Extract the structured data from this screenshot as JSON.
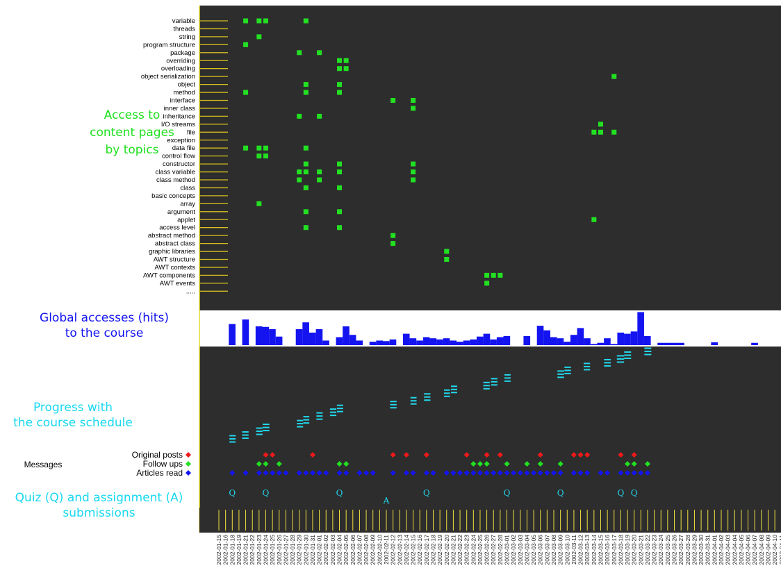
{
  "labels": {
    "topics_panel": "Access to content pages by topics",
    "topics_l1": "Access to",
    "topics_l2": "content pages",
    "topics_l3": "by topics",
    "hits_l1": "Global accesses (hits)",
    "hits_l2": "to the course",
    "progress_l1": "Progress with",
    "progress_l2": "the course schedule",
    "messages": "Messages",
    "original_posts": "Original posts",
    "follow_ups": "Follow ups",
    "articles_read": "Articles read",
    "quiz_l1": "Quiz (Q) and assignment (A)",
    "quiz_l2": "submissions",
    "quiz_marker": "Q",
    "assignment_marker": "A"
  },
  "colors": {
    "panel_bg": "#2d2d2d",
    "topic_mark": "#22e022",
    "hits_bar": "#1414f0",
    "progress": "#22d8ee",
    "original_posts": "#ee1a1a",
    "follow_ups": "#22e022",
    "articles_read": "#1414f0",
    "tick": "#f0e040"
  },
  "chart_data": {
    "type": "heatmap",
    "dates": [
      "2002-01-15",
      "2002-01-16",
      "2002-01-18",
      "2002-01-19",
      "2002-01-21",
      "2002-01-22",
      "2002-01-23",
      "2002-01-24",
      "2002-01-25",
      "2002-01-26",
      "2002-01-27",
      "2002-01-28",
      "2002-01-29",
      "2002-01-30",
      "2002-01-31",
      "2002-02-01",
      "2002-02-02",
      "2002-02-03",
      "2002-02-04",
      "2002-02-05",
      "2002-02-06",
      "2002-02-07",
      "2002-02-08",
      "2002-02-09",
      "2002-02-10",
      "2002-02-11",
      "2002-02-12",
      "2002-02-13",
      "2002-02-14",
      "2002-02-15",
      "2002-02-16",
      "2002-02-17",
      "2002-02-18",
      "2002-02-19",
      "2002-02-20",
      "2002-02-21",
      "2002-02-22",
      "2002-02-23",
      "2002-02-24",
      "2002-02-25",
      "2002-02-26",
      "2002-02-27",
      "2002-02-28",
      "2002-03-01",
      "2002-03-02",
      "2002-03-03",
      "2002-03-04",
      "2002-03-05",
      "2002-03-06",
      "2002-03-07",
      "2002-03-08",
      "2002-03-09",
      "2002-03-10",
      "2002-03-11",
      "2002-03-12",
      "2002-03-13",
      "2002-03-14",
      "2002-03-15",
      "2002-03-16",
      "2002-03-17",
      "2002-03-18",
      "2002-03-19",
      "2002-03-20",
      "2002-03-21",
      "2002-03-22",
      "2002-03-23",
      "2002-03-24",
      "2002-03-25",
      "2002-03-26",
      "2002-03-27",
      "2002-03-28",
      "2002-03-29",
      "2002-03-30",
      "2002-03-31",
      "2002-04-01",
      "2002-04-02",
      "2002-04-03",
      "2002-04-04",
      "2002-04-05",
      "2002-04-06",
      "2002-04-07",
      "2002-04-08",
      "2002-04-09",
      "2002-04-10",
      "2002-04-11"
    ],
    "topics": [
      "variable",
      "threads",
      "string",
      "program structure",
      "package",
      "overriding",
      "overloading",
      "object serialization",
      "object",
      "method",
      "interface",
      "inner class",
      "inheritance",
      "I/O streams",
      "file",
      "exception",
      "data file",
      "control flow",
      "constructor",
      "class variable",
      "class method",
      "class",
      "basic concepts",
      "array",
      "argument",
      "applet",
      "access level",
      "abstract method",
      "abstract class",
      "graphic libraries",
      "AWT structure",
      "AWT contexts",
      "AWT components",
      "AWT events",
      "....."
    ],
    "topic_accesses": [
      [
        "variable",
        [
          "2002-01-21",
          "2002-01-23",
          "2002-01-24",
          "2002-01-30"
        ]
      ],
      [
        "string",
        [
          "2002-01-23"
        ]
      ],
      [
        "program structure",
        [
          "2002-01-21"
        ]
      ],
      [
        "package",
        [
          "2002-01-29",
          "2002-02-01"
        ]
      ],
      [
        "overriding",
        [
          "2002-02-04",
          "2002-02-05"
        ]
      ],
      [
        "overloading",
        [
          "2002-02-04",
          "2002-02-05"
        ]
      ],
      [
        "object serialization",
        [
          "2002-03-17"
        ]
      ],
      [
        "object",
        [
          "2002-01-30",
          "2002-02-04"
        ]
      ],
      [
        "method",
        [
          "2002-01-21",
          "2002-01-30",
          "2002-02-04"
        ]
      ],
      [
        "interface",
        [
          "2002-02-12",
          "2002-02-15"
        ]
      ],
      [
        "inner class",
        [
          "2002-02-15"
        ]
      ],
      [
        "inheritance",
        [
          "2002-01-29",
          "2002-02-01"
        ]
      ],
      [
        "I/O streams",
        [
          "2002-03-15"
        ]
      ],
      [
        "file",
        [
          "2002-03-14",
          "2002-03-15",
          "2002-03-17"
        ]
      ],
      [
        "data file",
        [
          "2002-01-21",
          "2002-01-23",
          "2002-01-24",
          "2002-01-30"
        ]
      ],
      [
        "control flow",
        [
          "2002-01-23",
          "2002-01-24"
        ]
      ],
      [
        "constructor",
        [
          "2002-01-30",
          "2002-02-04",
          "2002-02-15"
        ]
      ],
      [
        "class variable",
        [
          "2002-01-29",
          "2002-01-30",
          "2002-02-01",
          "2002-02-04",
          "2002-02-15"
        ]
      ],
      [
        "class method",
        [
          "2002-01-29",
          "2002-02-01",
          "2002-02-15"
        ]
      ],
      [
        "class",
        [
          "2002-01-30",
          "2002-02-04"
        ]
      ],
      [
        "array",
        [
          "2002-01-23"
        ]
      ],
      [
        "argument",
        [
          "2002-01-30",
          "2002-02-04"
        ]
      ],
      [
        "applet",
        [
          "2002-03-14"
        ]
      ],
      [
        "access level",
        [
          "2002-01-30",
          "2002-02-04"
        ]
      ],
      [
        "abstract method",
        [
          "2002-02-12"
        ]
      ],
      [
        "abstract class",
        [
          "2002-02-12"
        ]
      ],
      [
        "graphic libraries",
        [
          "2002-02-20"
        ]
      ],
      [
        "AWT structure",
        [
          "2002-02-20"
        ]
      ],
      [
        "AWT components",
        [
          "2002-02-26",
          "2002-02-27",
          "2002-02-28"
        ]
      ],
      [
        "AWT events",
        [
          "2002-02-26"
        ]
      ]
    ],
    "hits": [
      0,
      0,
      37,
      0,
      45,
      0,
      33,
      32,
      28,
      15,
      0,
      0,
      28,
      40,
      22,
      28,
      8,
      0,
      14,
      33,
      18,
      8,
      0,
      6,
      8,
      7,
      10,
      0,
      20,
      12,
      8,
      14,
      12,
      10,
      12,
      8,
      6,
      8,
      10,
      15,
      20,
      10,
      14,
      16,
      0,
      0,
      16,
      0,
      34,
      26,
      14,
      12,
      6,
      18,
      30,
      12,
      2,
      4,
      12,
      2,
      22,
      20,
      24,
      58,
      16,
      0,
      4,
      4,
      4,
      4,
      0,
      0,
      0,
      0,
      5,
      0,
      0,
      0,
      0,
      0,
      4,
      0,
      0,
      0,
      0
    ],
    "progress": [
      [
        [
          "2002-01-18",
          0.37,
          0.6
        ]
      ],
      [
        [
          "2002-01-21",
          0.13,
          0.47
        ]
      ],
      [
        [
          "2002-01-23",
          0.36,
          0.65
        ]
      ],
      [
        [
          "2002-01-24",
          0.3,
          0.7
        ]
      ],
      [
        [
          "2002-01-29",
          0.55,
          0.78
        ]
      ],
      [
        [
          "2002-01-30",
          0.45,
          0.6
        ]
      ],
      [
        [
          "2002-02-01",
          0.35,
          0.6
        ]
      ],
      [
        [
          "2002-02-03",
          0.4,
          0.7
        ]
      ],
      [
        [
          "2002-02-04",
          0.5,
          0.75
        ]
      ],
      [
        [
          "2002-02-12",
          0.35,
          0.7
        ]
      ],
      [
        [
          "2002-02-15",
          0.45,
          0.65
        ]
      ],
      [
        [
          "2002-02-17",
          0.5,
          0.8
        ]
      ],
      [
        [
          "2002-02-20",
          0.45,
          0.6
        ]
      ],
      [
        [
          "2002-02-21",
          0.55,
          0.8
        ]
      ],
      [
        [
          "2002-02-26",
          0.15,
          0.45
        ]
      ],
      [
        [
          "2002-02-27",
          0.5,
          0.8
        ]
      ],
      [
        [
          "2002-03-01",
          0.5,
          0.75
        ]
      ],
      [
        [
          "2002-03-09",
          0.3,
          0.7
        ]
      ],
      [
        [
          "2002-03-10",
          0.4,
          0.75
        ]
      ],
      [
        [
          "2002-03-13",
          0.1,
          0.4
        ]
      ],
      [
        [
          "2002-03-16",
          0.2,
          0.6
        ]
      ],
      [
        [
          "2002-03-18",
          0.0,
          0.6
        ]
      ],
      [
        [
          "2002-03-19",
          0.2,
          0.7
        ]
      ],
      [
        [
          "2002-03-22",
          0.25,
          0.75
        ]
      ]
    ],
    "original_posts": [
      "2002-01-24",
      "2002-01-25",
      "2002-01-31",
      "2002-02-12",
      "2002-02-14",
      "2002-02-17",
      "2002-02-23",
      "2002-02-26",
      "2002-02-28",
      "2002-03-06",
      "2002-03-11",
      "2002-03-12",
      "2002-03-13",
      "2002-03-18",
      "2002-03-20"
    ],
    "follow_ups": [
      "2002-01-23",
      "2002-01-24",
      "2002-01-26",
      "2002-02-04",
      "2002-02-05",
      "2002-02-24",
      "2002-02-25",
      "2002-02-26",
      "2002-03-01",
      "2002-03-04",
      "2002-03-06",
      "2002-03-09",
      "2002-03-19",
      "2002-03-20",
      "2002-03-22"
    ],
    "articles_read": [
      "2002-01-18",
      "2002-01-21",
      "2002-01-23",
      "2002-01-24",
      "2002-01-25",
      "2002-01-26",
      "2002-01-27",
      "2002-01-29",
      "2002-01-30",
      "2002-01-31",
      "2002-02-01",
      "2002-02-02",
      "2002-02-04",
      "2002-02-05",
      "2002-02-07",
      "2002-02-08",
      "2002-02-09",
      "2002-02-12",
      "2002-02-14",
      "2002-02-15",
      "2002-02-17",
      "2002-02-18",
      "2002-02-20",
      "2002-02-21",
      "2002-02-22",
      "2002-02-23",
      "2002-02-24",
      "2002-02-25",
      "2002-02-26",
      "2002-02-27",
      "2002-02-28",
      "2002-03-01",
      "2002-03-02",
      "2002-03-03",
      "2002-03-04",
      "2002-03-05",
      "2002-03-06",
      "2002-03-07",
      "2002-03-08",
      "2002-03-09",
      "2002-03-11",
      "2002-03-12",
      "2002-03-13",
      "2002-03-15",
      "2002-03-16",
      "2002-03-18",
      "2002-03-19",
      "2002-03-20",
      "2002-03-21",
      "2002-03-22"
    ],
    "quizzes": [
      "2002-01-18",
      "2002-01-24",
      "2002-02-04",
      "2002-02-17",
      "2002-03-01",
      "2002-03-09",
      "2002-03-18",
      "2002-03-20"
    ],
    "assignments": [
      "2002-02-11"
    ]
  }
}
